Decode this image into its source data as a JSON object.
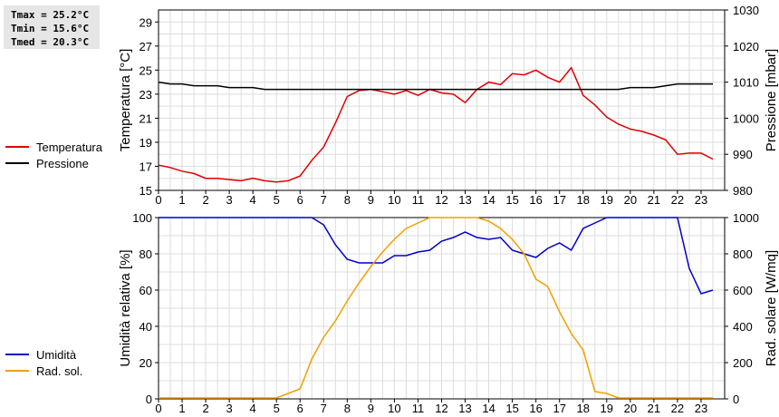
{
  "stats": {
    "tmax": "Tmax = 25.2°C",
    "tmin": "Tmin = 15.6°C",
    "tmed": "Tmed = 20.3°C"
  },
  "legend_top": [
    {
      "label": "Temperatura",
      "color": "#e00000"
    },
    {
      "label": "Pressione",
      "color": "#000000"
    }
  ],
  "legend_bottom": [
    {
      "label": "Umidità",
      "color": "#0000c8"
    },
    {
      "label": "Rad. sol.",
      "color": "#f0a000"
    }
  ],
  "chart_data": [
    {
      "type": "line",
      "x": [
        0,
        0.5,
        1,
        1.5,
        2,
        2.5,
        3,
        3.5,
        4,
        4.5,
        5,
        5.5,
        6,
        6.5,
        7,
        7.5,
        8,
        8.5,
        9,
        9.5,
        10,
        10.5,
        11,
        11.5,
        12,
        12.5,
        13,
        13.5,
        14,
        14.5,
        15,
        15.5,
        16,
        16.5,
        17,
        17.5,
        18,
        18.5,
        19,
        19.5,
        20,
        20.5,
        21,
        21.5,
        22,
        22.5,
        23,
        23.5
      ],
      "xticks": [
        "0",
        "1",
        "2",
        "3",
        "4",
        "5",
        "6",
        "7",
        "8",
        "9",
        "10",
        "11",
        "12",
        "13",
        "14",
        "15",
        "16",
        "17",
        "18",
        "19",
        "20",
        "21",
        "22",
        "23"
      ],
      "xlim": [
        0,
        24
      ],
      "ylabel": "Temperatura [°C]",
      "ylim": [
        15,
        30
      ],
      "yticks": [
        15,
        17,
        19,
        21,
        23,
        25,
        27,
        29
      ],
      "y2label": "Pressione [mbar]",
      "y2lim": [
        980,
        1030
      ],
      "y2ticks": [
        980,
        990,
        1000,
        1010,
        1020,
        1030
      ],
      "grid": true,
      "series": [
        {
          "name": "Temperatura",
          "axis": "left",
          "color": "#e00000",
          "values": [
            17.1,
            16.9,
            16.6,
            16.4,
            16.0,
            16.0,
            15.9,
            15.8,
            16.0,
            15.8,
            15.7,
            15.8,
            16.2,
            17.5,
            18.6,
            20.6,
            22.8,
            23.3,
            23.4,
            23.2,
            23.0,
            23.3,
            22.9,
            23.4,
            23.1,
            23.0,
            22.3,
            23.4,
            24.0,
            23.8,
            24.7,
            24.6,
            25.0,
            24.4,
            24.0,
            25.2,
            22.9,
            22.1,
            21.1,
            20.5,
            20.1,
            19.9,
            19.6,
            19.2,
            18.0,
            18.1,
            18.1,
            17.6
          ]
        },
        {
          "name": "Pressione",
          "axis": "right",
          "color": "#000000",
          "values": [
            1010,
            1009.5,
            1009.5,
            1009,
            1009,
            1009,
            1008.5,
            1008.5,
            1008.5,
            1008,
            1008,
            1008,
            1008,
            1008,
            1008,
            1008,
            1008,
            1008,
            1008,
            1008,
            1008,
            1008,
            1008,
            1008,
            1008,
            1008,
            1008,
            1008,
            1008,
            1008,
            1008,
            1008,
            1008,
            1008,
            1008,
            1008,
            1008,
            1008,
            1008,
            1008,
            1008.5,
            1008.5,
            1008.5,
            1009,
            1009.5,
            1009.5,
            1009.5,
            1009.5
          ]
        }
      ]
    },
    {
      "type": "line",
      "x": [
        0,
        0.5,
        1,
        1.5,
        2,
        2.5,
        3,
        3.5,
        4,
        4.5,
        5,
        5.5,
        6,
        6.5,
        7,
        7.5,
        8,
        8.5,
        9,
        9.5,
        10,
        10.5,
        11,
        11.5,
        12,
        12.5,
        13,
        13.5,
        14,
        14.5,
        15,
        15.5,
        16,
        16.5,
        17,
        17.5,
        18,
        18.5,
        19,
        19.5,
        20,
        20.5,
        21,
        21.5,
        22,
        22.5,
        23,
        23.5
      ],
      "xticks": [
        "0",
        "1",
        "2",
        "3",
        "4",
        "5",
        "6",
        "7",
        "8",
        "9",
        "10",
        "11",
        "12",
        "13",
        "14",
        "15",
        "16",
        "17",
        "18",
        "19",
        "20",
        "21",
        "22",
        "23"
      ],
      "xlim": [
        0,
        24
      ],
      "ylabel": "Umidità relativa [%]",
      "ylim": [
        0,
        100
      ],
      "yticks": [
        0,
        20,
        40,
        60,
        80,
        100
      ],
      "y2label": "Rad. solare [W/mq]",
      "y2lim": [
        0,
        1000
      ],
      "y2ticks": [
        0,
        200,
        400,
        600,
        800,
        1000
      ],
      "grid": true,
      "series": [
        {
          "name": "Umidità",
          "axis": "left",
          "color": "#0000c8",
          "values": [
            100,
            100,
            100,
            100,
            100,
            100,
            100,
            100,
            100,
            100,
            100,
            100,
            100,
            100,
            96,
            85,
            77,
            75,
            75,
            75,
            79,
            79,
            81,
            82,
            87,
            89,
            92,
            89,
            88,
            89,
            82,
            80,
            78,
            83,
            86,
            82,
            94,
            97,
            100,
            100,
            100,
            100,
            100,
            100,
            100,
            72,
            58,
            60
          ]
        },
        {
          "name": "Rad. sol.",
          "axis": "right",
          "color": "#f0a000",
          "values": [
            5,
            5,
            5,
            5,
            5,
            5,
            5,
            5,
            5,
            5,
            5,
            30,
            55,
            220,
            340,
            430,
            540,
            640,
            730,
            810,
            880,
            940,
            970,
            1000,
            1000,
            1000,
            1000,
            1000,
            980,
            940,
            880,
            800,
            660,
            620,
            480,
            360,
            270,
            40,
            30,
            5,
            5,
            5,
            5,
            5,
            5,
            5,
            5,
            5
          ]
        }
      ]
    }
  ]
}
